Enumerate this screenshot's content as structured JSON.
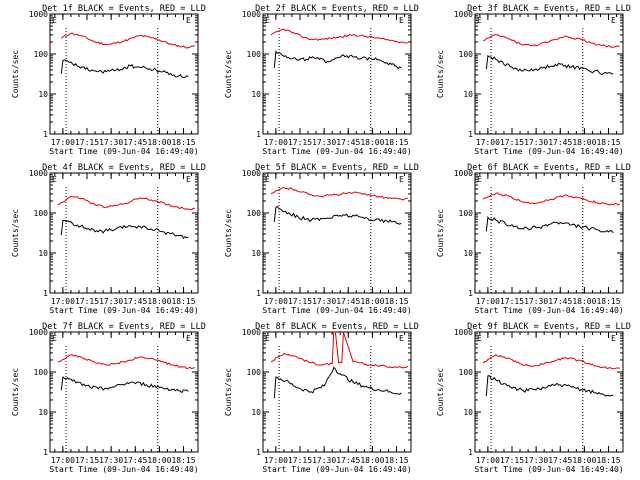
{
  "colors": {
    "background": "#ffffff",
    "events": "#000000",
    "lld": "#e00000"
  },
  "chart_data": [
    {
      "type": "line",
      "title": "Det 1f BLACK = Events, RED = LLD",
      "xlabel": "Start Time (09-Jun-04 16:49:40)",
      "ylabel": "Counts/sec",
      "x_ticks": [
        "17:00",
        "17:15",
        "17:30",
        "17:45",
        "18:00",
        "18:15"
      ],
      "y_ticks": [
        "1",
        "10",
        "100",
        "1000"
      ],
      "y_scale": "log",
      "ylim": [
        1,
        1000
      ],
      "event_lines": [
        "17:02",
        "17:59"
      ],
      "event_markers": [
        "E",
        "E"
      ],
      "series": [
        {
          "color": "#e00000",
          "x": [
            "16:59",
            "17:05",
            "17:12",
            "17:20",
            "17:28",
            "17:38",
            "17:48",
            "17:58",
            "18:08",
            "18:18",
            "18:22"
          ],
          "values": [
            250,
            330,
            280,
            200,
            170,
            210,
            290,
            240,
            170,
            145,
            160
          ]
        },
        {
          "color": "#000000",
          "x": [
            "16:59",
            "17:00",
            "17:06",
            "17:14",
            "17:22",
            "17:32",
            "17:42",
            "17:52",
            "18:02",
            "18:12",
            "18:18"
          ],
          "values": [
            32,
            68,
            57,
            42,
            36,
            38,
            50,
            44,
            36,
            28,
            27
          ]
        }
      ]
    },
    {
      "type": "line",
      "title": "Det 2f BLACK = Events, RED = LLD",
      "xlabel": "Start Time (09-Jun-04 16:49:40)",
      "ylabel": "Counts/sec",
      "x_ticks": [
        "17:00",
        "17:15",
        "17:30",
        "17:45",
        "18:00",
        "18:15"
      ],
      "y_ticks": [
        "1",
        "10",
        "100",
        "1000"
      ],
      "y_scale": "log",
      "ylim": [
        1,
        1000
      ],
      "event_lines": [
        "17:02",
        "17:59"
      ],
      "event_markers": [
        "E",
        "E"
      ],
      "series": [
        {
          "color": "#e00000",
          "x": [
            "16:57",
            "17:05",
            "17:12",
            "17:20",
            "17:28",
            "17:38",
            "17:48",
            "17:58",
            "18:08",
            "18:18",
            "18:22"
          ],
          "values": [
            300,
            420,
            320,
            240,
            230,
            260,
            300,
            270,
            230,
            200,
            190
          ]
        },
        {
          "color": "#000000",
          "x": [
            "16:59",
            "17:00",
            "17:06",
            "17:14",
            "17:22",
            "17:32",
            "17:42",
            "17:52",
            "18:02",
            "18:12",
            "18:18"
          ],
          "values": [
            45,
            115,
            90,
            70,
            80,
            65,
            95,
            75,
            80,
            55,
            45
          ]
        }
      ]
    },
    {
      "type": "line",
      "title": "Det 3f BLACK = Events, RED = LLD",
      "xlabel": "Start Time (09-Jun-04 16:49:40)",
      "ylabel": "Counts/sec",
      "x_ticks": [
        "17:00",
        "17:15",
        "17:30",
        "17:45",
        "18:00",
        "18:15"
      ],
      "y_ticks": [
        "1",
        "10",
        "100",
        "1000"
      ],
      "y_scale": "log",
      "ylim": [
        1,
        1000
      ],
      "event_lines": [
        "17:02",
        "17:59"
      ],
      "event_markers": [
        "E",
        "E"
      ],
      "series": [
        {
          "color": "#e00000",
          "x": [
            "16:57",
            "17:05",
            "17:12",
            "17:20",
            "17:28",
            "17:38",
            "17:48",
            "17:58",
            "18:08",
            "18:18",
            "18:22"
          ],
          "values": [
            220,
            300,
            250,
            180,
            160,
            200,
            280,
            230,
            170,
            150,
            160
          ]
        },
        {
          "color": "#000000",
          "x": [
            "16:59",
            "17:00",
            "17:06",
            "17:14",
            "17:22",
            "17:32",
            "17:42",
            "17:52",
            "18:02",
            "18:12",
            "18:18"
          ],
          "values": [
            42,
            90,
            70,
            48,
            38,
            42,
            55,
            48,
            40,
            33,
            32
          ]
        }
      ]
    },
    {
      "type": "line",
      "title": "Det 4f BLACK = Events, RED = LLD",
      "xlabel": "Start Time (09-Jun-04 16:49:40)",
      "ylabel": "Counts/sec",
      "x_ticks": [
        "17:00",
        "17:15",
        "17:30",
        "17:45",
        "18:00",
        "18:15"
      ],
      "y_ticks": [
        "1",
        "10",
        "100",
        "1000"
      ],
      "y_scale": "log",
      "ylim": [
        1,
        1000
      ],
      "event_lines": [
        "17:02",
        "17:59"
      ],
      "event_markers": [
        "E",
        "E"
      ],
      "series": [
        {
          "color": "#e00000",
          "x": [
            "16:57",
            "17:05",
            "17:12",
            "17:20",
            "17:28",
            "17:38",
            "17:48",
            "17:58",
            "18:08",
            "18:18",
            "18:22"
          ],
          "values": [
            160,
            260,
            230,
            160,
            140,
            170,
            240,
            200,
            150,
            125,
            130
          ]
        },
        {
          "color": "#000000",
          "x": [
            "16:59",
            "17:00",
            "17:06",
            "17:14",
            "17:22",
            "17:32",
            "17:42",
            "17:52",
            "18:02",
            "18:12",
            "18:18"
          ],
          "values": [
            28,
            65,
            55,
            42,
            34,
            38,
            48,
            42,
            34,
            27,
            25
          ]
        }
      ]
    },
    {
      "type": "line",
      "title": "Det 5f BLACK = Events, RED = LLD",
      "xlabel": "Start Time (09-Jun-04 16:49:40)",
      "ylabel": "Counts/sec",
      "x_ticks": [
        "17:00",
        "17:15",
        "17:30",
        "17:45",
        "18:00",
        "18:15"
      ],
      "y_ticks": [
        "1",
        "10",
        "100",
        "1000"
      ],
      "y_scale": "log",
      "ylim": [
        1,
        1000
      ],
      "event_lines": [
        "17:02",
        "17:59"
      ],
      "event_markers": [
        "E",
        "E"
      ],
      "series": [
        {
          "color": "#e00000",
          "x": [
            "16:57",
            "17:05",
            "17:12",
            "17:20",
            "17:28",
            "17:38",
            "17:48",
            "17:58",
            "18:08",
            "18:18",
            "18:22"
          ],
          "values": [
            300,
            430,
            380,
            300,
            260,
            290,
            320,
            290,
            240,
            220,
            230
          ]
        },
        {
          "color": "#000000",
          "x": [
            "16:59",
            "17:00",
            "17:06",
            "17:14",
            "17:22",
            "17:32",
            "17:42",
            "17:52",
            "18:02",
            "18:12",
            "18:18"
          ],
          "values": [
            60,
            140,
            110,
            78,
            66,
            75,
            90,
            80,
            68,
            60,
            56
          ]
        }
      ]
    },
    {
      "type": "line",
      "title": "Det 6f BLACK = Events, RED = LLD",
      "xlabel": "Start Time (09-Jun-04 16:49:40)",
      "ylabel": "Counts/sec",
      "x_ticks": [
        "17:00",
        "17:15",
        "17:30",
        "17:45",
        "18:00",
        "18:15"
      ],
      "y_ticks": [
        "1",
        "10",
        "100",
        "1000"
      ],
      "y_scale": "log",
      "ylim": [
        1,
        1000
      ],
      "event_lines": [
        "17:02",
        "17:59"
      ],
      "event_markers": [
        "E",
        "E"
      ],
      "series": [
        {
          "color": "#e00000",
          "x": [
            "16:57",
            "17:05",
            "17:12",
            "17:20",
            "17:28",
            "17:38",
            "17:48",
            "17:58",
            "18:08",
            "18:18",
            "18:22"
          ],
          "values": [
            220,
            310,
            270,
            200,
            175,
            210,
            280,
            230,
            180,
            160,
            170
          ]
        },
        {
          "color": "#000000",
          "x": [
            "16:59",
            "17:00",
            "17:06",
            "17:14",
            "17:22",
            "17:32",
            "17:42",
            "17:52",
            "18:02",
            "18:12",
            "18:18"
          ],
          "values": [
            35,
            78,
            64,
            48,
            40,
            44,
            58,
            50,
            42,
            34,
            32
          ]
        }
      ]
    },
    {
      "type": "line",
      "title": "Det 7f BLACK = Events, RED = LLD",
      "xlabel": "Start Time (09-Jun-04 16:49:40)",
      "ylabel": "Counts/sec",
      "x_ticks": [
        "17:00",
        "17:15",
        "17:30",
        "17:45",
        "18:00",
        "18:15"
      ],
      "y_ticks": [
        "1",
        "10",
        "100",
        "1000"
      ],
      "y_scale": "log",
      "ylim": [
        1,
        1000
      ],
      "event_lines": [
        "17:02",
        "17:59"
      ],
      "event_markers": [
        "E",
        "E"
      ],
      "series": [
        {
          "color": "#e00000",
          "x": [
            "16:57",
            "17:05",
            "17:12",
            "17:20",
            "17:28",
            "17:38",
            "17:48",
            "17:58",
            "18:08",
            "18:18",
            "18:22"
          ],
          "values": [
            180,
            270,
            230,
            170,
            150,
            180,
            240,
            200,
            150,
            125,
            130
          ]
        },
        {
          "color": "#000000",
          "x": [
            "16:59",
            "17:00",
            "17:06",
            "17:14",
            "17:22",
            "17:32",
            "17:42",
            "17:52",
            "18:02",
            "18:12",
            "18:18"
          ],
          "values": [
            35,
            75,
            60,
            45,
            38,
            42,
            55,
            48,
            40,
            34,
            33
          ]
        }
      ]
    },
    {
      "type": "line",
      "title": "Det 8f BLACK = Events, RED = LLD",
      "xlabel": "Start Time (09-Jun-04 16:49:40)",
      "ylabel": "Counts/sec",
      "x_ticks": [
        "17:00",
        "17:15",
        "17:30",
        "17:45",
        "18:00",
        "18:15"
      ],
      "y_ticks": [
        "1",
        "10",
        "100",
        "1000"
      ],
      "y_scale": "log",
      "ylim": [
        1,
        1000
      ],
      "event_lines": [
        "17:02",
        "17:59"
      ],
      "event_markers": [
        "E",
        "E"
      ],
      "series": [
        {
          "color": "#e00000",
          "x": [
            "16:57",
            "17:05",
            "17:12",
            "17:20",
            "17:28",
            "17:35",
            "17:36",
            "17:37",
            "17:39",
            "17:41",
            "17:42",
            "17:48",
            "17:58",
            "18:08",
            "18:18",
            "18:22"
          ],
          "values": [
            180,
            290,
            250,
            180,
            150,
            160,
            1000,
            1000,
            170,
            170,
            1000,
            180,
            150,
            140,
            130,
            140
          ]
        },
        {
          "color": "#000000",
          "x": [
            "16:59",
            "17:00",
            "17:06",
            "17:14",
            "17:22",
            "17:30",
            "17:36",
            "17:40",
            "17:48",
            "17:58",
            "18:08",
            "18:12",
            "18:18"
          ],
          "values": [
            22,
            75,
            60,
            40,
            32,
            45,
            130,
            90,
            55,
            40,
            34,
            30,
            30
          ]
        }
      ]
    },
    {
      "type": "line",
      "title": "Det 9f BLACK = Events, RED = LLD",
      "xlabel": "Start Time (09-Jun-04 16:49:40)",
      "ylabel": "Counts/sec",
      "x_ticks": [
        "17:00",
        "17:15",
        "17:30",
        "17:45",
        "18:00",
        "18:15"
      ],
      "y_ticks": [
        "1",
        "10",
        "100",
        "1000"
      ],
      "y_scale": "log",
      "ylim": [
        1,
        1000
      ],
      "event_lines": [
        "17:02",
        "17:59"
      ],
      "event_markers": [
        "E",
        "E"
      ],
      "series": [
        {
          "color": "#e00000",
          "x": [
            "16:57",
            "17:05",
            "17:12",
            "17:20",
            "17:28",
            "17:38",
            "17:48",
            "17:58",
            "18:08",
            "18:18",
            "18:22"
          ],
          "values": [
            170,
            270,
            220,
            160,
            140,
            170,
            230,
            190,
            140,
            120,
            125
          ]
        },
        {
          "color": "#000000",
          "x": [
            "16:59",
            "17:00",
            "17:06",
            "17:14",
            "17:22",
            "17:32",
            "17:42",
            "17:52",
            "18:02",
            "18:12",
            "18:18"
          ],
          "values": [
            25,
            80,
            60,
            42,
            34,
            38,
            48,
            42,
            34,
            27,
            26
          ]
        }
      ]
    }
  ]
}
